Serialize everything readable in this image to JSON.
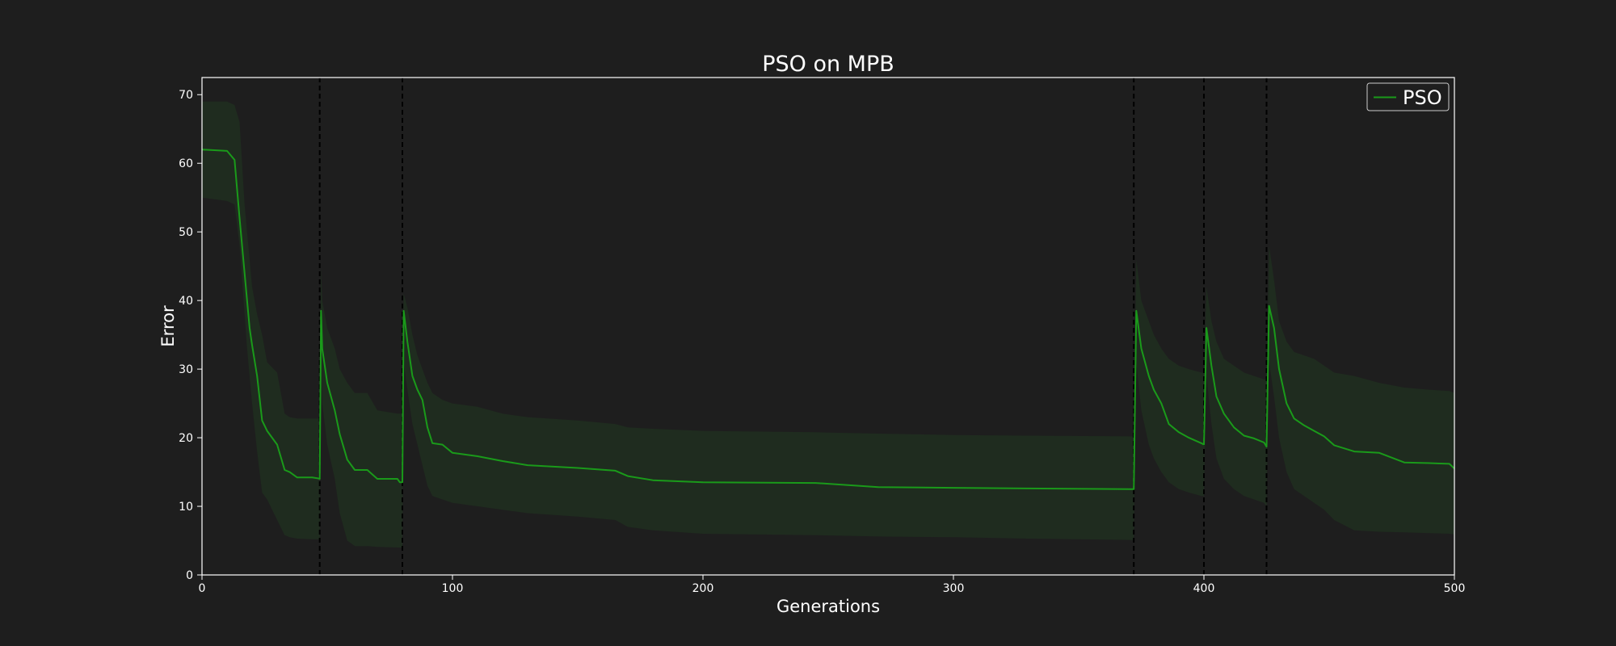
{
  "chart_data": {
    "type": "line",
    "title": "PSO on MPB",
    "xlabel": "Generations",
    "ylabel": "Error",
    "xlim": [
      0,
      500
    ],
    "ylim": [
      0,
      72.5
    ],
    "xticks": [
      0,
      100,
      200,
      300,
      400,
      500
    ],
    "yticks": [
      0,
      10,
      20,
      30,
      40,
      50,
      60,
      70
    ],
    "grid": false,
    "legend": {
      "position": "top-right",
      "entries": [
        "PSO"
      ]
    },
    "change_points": [
      47,
      80,
      372,
      400,
      425
    ],
    "colors": {
      "series": "#1a9a1a",
      "band": "#1f2c1f",
      "background": "#1e1e1e",
      "axes": "#ffffff",
      "vline": "#000000"
    },
    "series": [
      {
        "name": "PSO",
        "x": [
          0,
          10,
          13,
          15,
          17,
          18,
          19,
          20,
          22,
          24,
          26,
          30,
          33,
          35,
          38,
          44,
          46,
          47,
          47.5,
          48,
          50,
          53,
          55,
          58,
          61,
          66,
          70,
          78,
          79,
          80,
          80.5,
          82,
          84,
          86,
          88,
          90,
          92,
          96,
          100,
          110,
          120,
          130,
          150,
          165,
          170,
          180,
          200,
          245,
          270,
          300,
          330,
          371,
          372,
          373,
          375,
          378,
          380,
          383,
          386,
          390,
          394,
          399,
          400,
          401,
          403,
          405,
          408,
          412,
          416,
          420,
          424,
          425,
          426,
          428,
          430,
          433,
          436,
          440,
          444,
          448,
          452,
          460,
          470,
          480,
          490,
          498,
          500
        ],
        "y": [
          62,
          61.8,
          60.5,
          52,
          44,
          40,
          36,
          33.5,
          29,
          22.5,
          21,
          19,
          15.3,
          15,
          14.2,
          14.2,
          14.1,
          14,
          38.5,
          33,
          28,
          24,
          20.5,
          16.8,
          15.3,
          15.3,
          14,
          14,
          13.5,
          13.5,
          38.5,
          34,
          29,
          27,
          25.5,
          21.5,
          19.2,
          19,
          17.8,
          17.3,
          16.6,
          16,
          15.6,
          15.2,
          14.4,
          13.8,
          13.5,
          13.4,
          12.8,
          12.7,
          12.6,
          12.5,
          12.5,
          38.5,
          33,
          29,
          27,
          25,
          22,
          20.8,
          20,
          19.2,
          19,
          36,
          30.5,
          26,
          23.5,
          21.5,
          20.3,
          19.9,
          19.3,
          18.7,
          39.2,
          36,
          30,
          25,
          22.8,
          21.8,
          21,
          20.2,
          18.9,
          18,
          17.8,
          16.4,
          16.3,
          16.2,
          15.5
        ],
        "lower": [
          55,
          54.5,
          54,
          48,
          38,
          33,
          29,
          25,
          18,
          12,
          11,
          8,
          5.8,
          5.5,
          5.3,
          5.2,
          5.2,
          5.2,
          31,
          25,
          19,
          14,
          9,
          5,
          4.2,
          4.2,
          4.1,
          4,
          4,
          4,
          31,
          27,
          22,
          19,
          16,
          13,
          11.5,
          11,
          10.5,
          10,
          9.5,
          9,
          8.5,
          8,
          7,
          6.5,
          6,
          5.8,
          5.6,
          5.5,
          5.3,
          5.1,
          5.1,
          31,
          24,
          19,
          17,
          15,
          13.5,
          12.5,
          12,
          11.5,
          11.5,
          29,
          22,
          17,
          14,
          12.5,
          11.5,
          11,
          10.5,
          10,
          31,
          26,
          20,
          15,
          12.5,
          11.5,
          10.5,
          9.5,
          8,
          6.5,
          6.3,
          6.2,
          6.1,
          6,
          5.9
        ],
        "upper": [
          69,
          69,
          68.5,
          66,
          54,
          50,
          46,
          42,
          38,
          35,
          31,
          29.5,
          23.5,
          23,
          22.8,
          22.8,
          22.8,
          22.8,
          45,
          40,
          36,
          33,
          30,
          28,
          26.5,
          26.5,
          24,
          23.5,
          23.5,
          23.5,
          41,
          39,
          35,
          32,
          30,
          28,
          26.5,
          25.5,
          25,
          24.5,
          23.5,
          23,
          22.5,
          22,
          21.5,
          21.3,
          21,
          20.8,
          20.6,
          20.4,
          20.3,
          20.2,
          20.2,
          46,
          40,
          37,
          35,
          33,
          31.5,
          30.5,
          30,
          29.5,
          29.5,
          42,
          37,
          34,
          31.5,
          30.5,
          29.5,
          29,
          28.5,
          28.5,
          48,
          43,
          37,
          34,
          32.5,
          32,
          31.5,
          30.5,
          29.5,
          29,
          28,
          27.3,
          27,
          26.8,
          26.5
        ]
      }
    ]
  }
}
